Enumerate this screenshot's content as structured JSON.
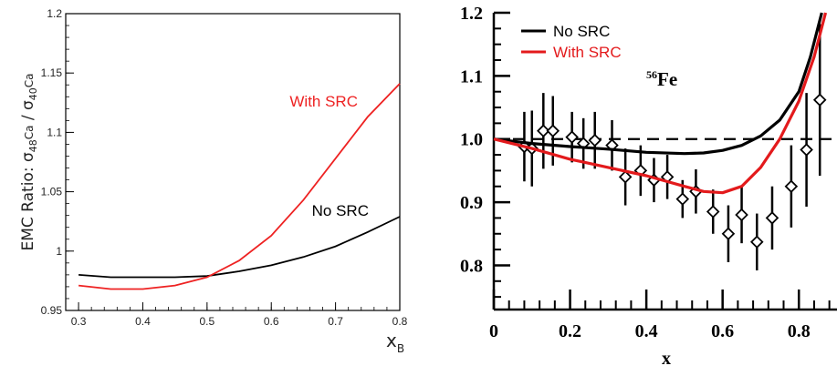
{
  "chart_data": [
    {
      "type": "line",
      "title": "",
      "xlabel": "x",
      "xlabel_sub": "B",
      "ylabel_prefix": "EMC Ratio: σ",
      "ylabel_sub1": "48",
      "ylabel_mid": "Ca",
      "ylabel_div": " / σ",
      "ylabel_sub2": "40",
      "ylabel_end": "Ca",
      "xlim": [
        0.28,
        0.8
      ],
      "ylim": [
        0.95,
        1.2
      ],
      "xticks": [
        0.3,
        0.4,
        0.5,
        0.6,
        0.7,
        0.8
      ],
      "yticks": [
        0.95,
        1.0,
        1.05,
        1.1,
        1.15,
        1.2
      ],
      "xtick_labels": [
        "0.3",
        "0.4",
        "0.5",
        "0.6",
        "0.7",
        "0.8"
      ],
      "ytick_labels": [
        "0.95",
        "1",
        "1.05",
        "1.1",
        "1.15",
        "1.2"
      ],
      "grid": false,
      "series": [
        {
          "name": "No SRC",
          "color": "#000000",
          "x": [
            0.3,
            0.35,
            0.4,
            0.45,
            0.5,
            0.55,
            0.6,
            0.65,
            0.7,
            0.75,
            0.8
          ],
          "y": [
            0.98,
            0.978,
            0.978,
            0.978,
            0.979,
            0.983,
            0.988,
            0.995,
            1.004,
            1.016,
            1.029
          ]
        },
        {
          "name": "With SRC",
          "color": "#ee2222",
          "x": [
            0.3,
            0.35,
            0.4,
            0.45,
            0.5,
            0.55,
            0.6,
            0.65,
            0.7,
            0.75,
            0.8
          ],
          "y": [
            0.971,
            0.968,
            0.968,
            0.971,
            0.978,
            0.992,
            1.013,
            1.043,
            1.078,
            1.113,
            1.141
          ]
        }
      ]
    },
    {
      "type": "line",
      "title": "",
      "annotation_sup": "56",
      "annotation_main": "Fe",
      "xlabel": "x",
      "ylabel": "",
      "xlim": [
        0.0,
        0.9
      ],
      "ylim": [
        0.73,
        1.2
      ],
      "xticks": [
        0.0,
        0.2,
        0.4,
        0.6,
        0.8
      ],
      "yticks": [
        0.8,
        0.9,
        1.0,
        1.1,
        1.2
      ],
      "xtick_labels": [
        "0",
        "0.2",
        "0.4",
        "0.6",
        "0.8"
      ],
      "ytick_labels": [
        "0.8",
        "0.9",
        "1.0",
        "1.1",
        "1.2"
      ],
      "reference_line_y": 1.0,
      "legend": [
        "No SRC",
        "With SRC"
      ],
      "legend_position": "top-left",
      "series": [
        {
          "name": "No SRC",
          "color": "#000000",
          "x": [
            0.0,
            0.1,
            0.2,
            0.3,
            0.4,
            0.5,
            0.55,
            0.6,
            0.65,
            0.7,
            0.75,
            0.8,
            0.83,
            0.86
          ],
          "y": [
            1.0,
            0.993,
            0.988,
            0.984,
            0.979,
            0.977,
            0.978,
            0.982,
            0.99,
            1.005,
            1.03,
            1.075,
            1.13,
            1.2
          ]
        },
        {
          "name": "With SRC",
          "color": "#e31a1c",
          "x": [
            0.0,
            0.1,
            0.2,
            0.3,
            0.4,
            0.5,
            0.55,
            0.6,
            0.65,
            0.7,
            0.75,
            0.8,
            0.84,
            0.87
          ],
          "y": [
            1.0,
            0.985,
            0.968,
            0.955,
            0.942,
            0.925,
            0.917,
            0.915,
            0.925,
            0.955,
            1.0,
            1.06,
            1.13,
            1.2
          ]
        }
      ],
      "data_points": [
        {
          "x": 0.08,
          "y": 0.988,
          "err": 0.055
        },
        {
          "x": 0.1,
          "y": 0.985,
          "err": 0.06
        },
        {
          "x": 0.13,
          "y": 1.013,
          "err": 0.06
        },
        {
          "x": 0.155,
          "y": 1.013,
          "err": 0.055
        },
        {
          "x": 0.205,
          "y": 1.003,
          "err": 0.04
        },
        {
          "x": 0.235,
          "y": 0.993,
          "err": 0.04
        },
        {
          "x": 0.265,
          "y": 0.998,
          "err": 0.045
        },
        {
          "x": 0.31,
          "y": 0.99,
          "err": 0.04
        },
        {
          "x": 0.345,
          "y": 0.94,
          "err": 0.045
        },
        {
          "x": 0.385,
          "y": 0.95,
          "err": 0.04
        },
        {
          "x": 0.42,
          "y": 0.935,
          "err": 0.035
        },
        {
          "x": 0.455,
          "y": 0.94,
          "err": 0.035
        },
        {
          "x": 0.495,
          "y": 0.905,
          "err": 0.03
        },
        {
          "x": 0.53,
          "y": 0.917,
          "err": 0.035
        },
        {
          "x": 0.575,
          "y": 0.885,
          "err": 0.035
        },
        {
          "x": 0.615,
          "y": 0.85,
          "err": 0.045
        },
        {
          "x": 0.65,
          "y": 0.88,
          "err": 0.045
        },
        {
          "x": 0.69,
          "y": 0.837,
          "err": 0.045
        },
        {
          "x": 0.73,
          "y": 0.875,
          "err": 0.05
        },
        {
          "x": 0.78,
          "y": 0.925,
          "err": 0.065
        },
        {
          "x": 0.82,
          "y": 0.983,
          "err": 0.09
        },
        {
          "x": 0.855,
          "y": 1.062,
          "err": 0.12
        }
      ]
    }
  ]
}
